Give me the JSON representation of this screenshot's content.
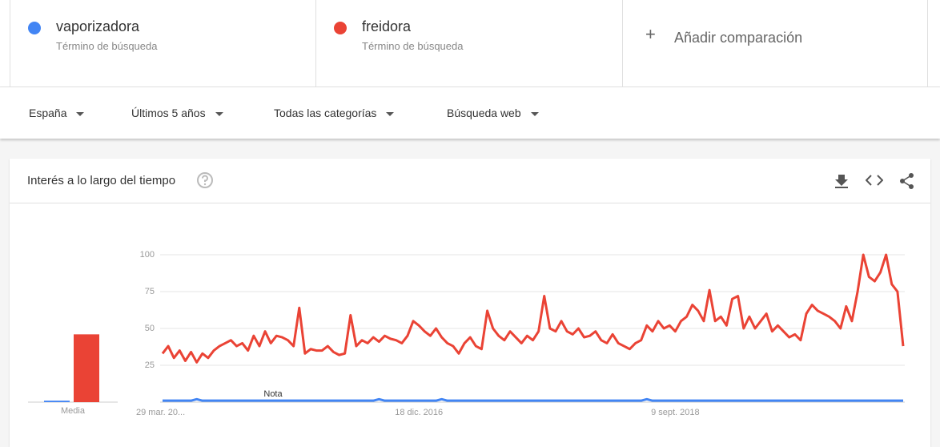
{
  "header": {
    "term_labels": [
      "Término de búsqueda",
      "Término de búsqueda"
    ],
    "add_comparison": "Añadir comparación"
  },
  "filters": [
    "España",
    "Últimos 5 años",
    "Todas las categorías",
    "Búsqueda web"
  ],
  "panel": {
    "title": "Interés a lo largo del tiempo"
  },
  "chart_data": [
    {
      "type": "bar",
      "x_label": "Media",
      "values": [
        1,
        46
      ],
      "colors": [
        "#4285f4",
        "#ea4335"
      ],
      "ylim": [
        0,
        100
      ]
    },
    {
      "type": "line",
      "annotation": "Nota",
      "ylim": [
        0,
        100
      ],
      "yticks": [
        25,
        50,
        75,
        100
      ],
      "grid": true,
      "categories": [
        "29 mar. 20...",
        null,
        null,
        null,
        null,
        null,
        null,
        null,
        null,
        null,
        null,
        null,
        null,
        null,
        null,
        null,
        null,
        null,
        null,
        null,
        null,
        null,
        null,
        null,
        null,
        null,
        null,
        null,
        null,
        null,
        null,
        null,
        null,
        null,
        null,
        null,
        null,
        null,
        null,
        null,
        null,
        null,
        null,
        null,
        null,
        "18 dic. 2016",
        null,
        null,
        null,
        null,
        null,
        null,
        null,
        null,
        null,
        null,
        null,
        null,
        null,
        null,
        null,
        null,
        null,
        null,
        null,
        null,
        null,
        null,
        null,
        null,
        null,
        null,
        null,
        null,
        null,
        null,
        null,
        null,
        null,
        null,
        null,
        null,
        null,
        null,
        null,
        null,
        null,
        null,
        null,
        null,
        "9 sept. 2018",
        null,
        null,
        null,
        null,
        null,
        null,
        null,
        null,
        null,
        null,
        null,
        null,
        null,
        null,
        null,
        null,
        null,
        null,
        null,
        null,
        null,
        null,
        null,
        null,
        null,
        null,
        null,
        null,
        null,
        null,
        null,
        null,
        null,
        null,
        null,
        null,
        null,
        null,
        null,
        null
      ],
      "series": [
        {
          "name": "vaporizadora",
          "color": "#4285f4",
          "values": [
            1,
            1,
            1,
            1,
            1,
            1,
            2,
            1,
            1,
            1,
            1,
            1,
            1,
            1,
            1,
            1,
            1,
            1,
            1,
            1,
            1,
            1,
            1,
            1,
            1,
            1,
            1,
            1,
            1,
            1,
            1,
            1,
            1,
            1,
            1,
            1,
            1,
            1,
            2,
            1,
            1,
            1,
            1,
            1,
            1,
            1,
            1,
            1,
            1,
            2,
            1,
            1,
            1,
            1,
            1,
            1,
            1,
            1,
            1,
            1,
            1,
            1,
            1,
            1,
            1,
            1,
            1,
            1,
            1,
            1,
            1,
            1,
            1,
            1,
            1,
            1,
            1,
            1,
            1,
            1,
            1,
            1,
            1,
            1,
            1,
            2,
            1,
            1,
            1,
            1,
            1,
            1,
            1,
            1,
            1,
            1,
            1,
            1,
            1,
            1,
            1,
            1,
            1,
            1,
            1,
            1,
            1,
            1,
            1,
            1,
            1,
            1,
            1,
            1,
            1,
            1,
            1,
            1,
            1,
            1,
            1,
            1,
            1,
            1,
            1,
            1,
            1,
            1,
            1,
            1,
            1
          ]
        },
        {
          "name": "freidora",
          "color": "#ea4335",
          "values": [
            33,
            38,
            30,
            35,
            28,
            34,
            27,
            33,
            30,
            35,
            38,
            40,
            42,
            38,
            40,
            35,
            45,
            38,
            48,
            40,
            45,
            44,
            42,
            38,
            64,
            33,
            36,
            35,
            35,
            38,
            34,
            32,
            33,
            59,
            38,
            42,
            40,
            44,
            41,
            45,
            43,
            42,
            40,
            45,
            55,
            52,
            48,
            45,
            50,
            44,
            40,
            38,
            33,
            40,
            44,
            38,
            36,
            62,
            50,
            45,
            42,
            48,
            44,
            40,
            45,
            42,
            48,
            72,
            50,
            48,
            55,
            48,
            46,
            50,
            44,
            45,
            48,
            42,
            40,
            46,
            40,
            38,
            36,
            40,
            42,
            52,
            48,
            55,
            50,
            52,
            48,
            55,
            58,
            66,
            62,
            55,
            76,
            55,
            58,
            52,
            70,
            72,
            50,
            58,
            50,
            55,
            60,
            48,
            52,
            48,
            44,
            46,
            42,
            60,
            66,
            62,
            60,
            58,
            55,
            50,
            65,
            55,
            75,
            100,
            85,
            82,
            88,
            100,
            80,
            75,
            38
          ]
        }
      ]
    }
  ]
}
